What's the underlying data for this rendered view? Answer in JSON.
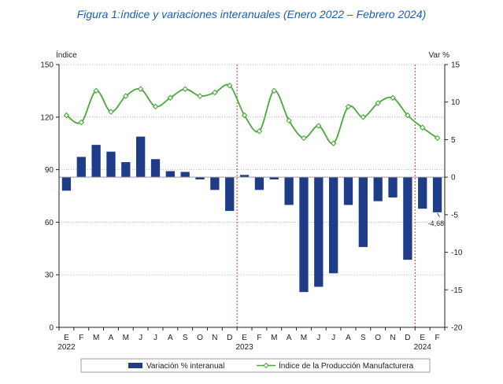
{
  "chart_data": {
    "type": "bar",
    "title": "Figura 1:índice y variaciones interanuales (Enero 2022 – Febrero 2024)",
    "ylabel_left": "Índice",
    "ylabel_right": "Var %",
    "ylim_left": [
      0,
      150
    ],
    "yticks_left": [
      0,
      30,
      60,
      90,
      120,
      150
    ],
    "ylim_right": [
      -20,
      15
    ],
    "yticks_right": [
      -20,
      -15,
      -10,
      -5,
      0,
      5,
      10,
      15
    ],
    "categories": [
      "E",
      "F",
      "M",
      "A",
      "M",
      "J",
      "J",
      "A",
      "S",
      "O",
      "N",
      "D",
      "E",
      "F",
      "M",
      "A",
      "M",
      "J",
      "J",
      "A",
      "S",
      "O",
      "N",
      "D",
      "E",
      "F"
    ],
    "year_labels": [
      {
        "index": 0,
        "label": "2022"
      },
      {
        "index": 12,
        "label": "2023"
      },
      {
        "index": 24,
        "label": "2024"
      }
    ],
    "year_dividers_after_index": [
      11,
      23
    ],
    "series": [
      {
        "name": "Variación % interanual",
        "type": "bar",
        "axis": "right",
        "color": "#1f3c88",
        "values": [
          -1.8,
          2.7,
          4.3,
          3.4,
          2.0,
          5.4,
          2.4,
          0.8,
          0.7,
          -0.3,
          -1.7,
          -4.5,
          0.3,
          -1.7,
          -0.3,
          -3.7,
          -15.3,
          -14.6,
          -12.8,
          -3.7,
          -9.3,
          -3.2,
          -2.7,
          -11.0,
          -4.2,
          -4.68
        ]
      },
      {
        "name": "Índice de la Producción Manufacturera",
        "type": "line",
        "axis": "left",
        "color": "#4aa83a",
        "values": [
          121,
          117,
          135,
          123,
          132,
          136,
          126,
          131,
          136,
          132,
          134,
          138,
          121,
          112,
          135,
          118,
          108,
          115,
          105,
          126,
          120,
          128,
          131,
          121,
          114,
          108
        ]
      }
    ],
    "annotations": [
      {
        "index": 25,
        "series": 0,
        "label": "-4,68"
      }
    ],
    "legend_position": "bottom",
    "grid": "horizontal dotted"
  }
}
